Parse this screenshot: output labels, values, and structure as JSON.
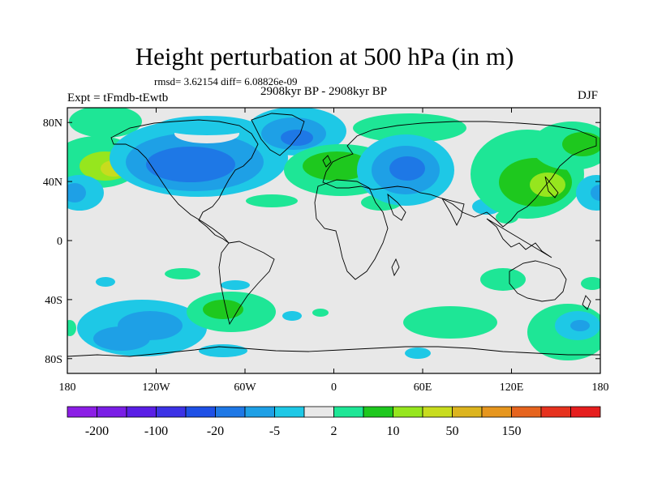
{
  "title": "Height perturbation at 500 hPa (in m)",
  "stats": "rmsd= 3.62154 diff= 6.08826e-09",
  "expt": "Expt = tFmdb-tEwtb",
  "period": "2908kyr BP - 2908kyr BP",
  "season": "DJF",
  "map": {
    "lon_range": [
      -180,
      180
    ],
    "lat_range": [
      -90,
      90
    ],
    "y_ticks": [
      {
        "lat": 80,
        "label": "80N"
      },
      {
        "lat": 40,
        "label": "40N"
      },
      {
        "lat": 0,
        "label": "0"
      },
      {
        "lat": -40,
        "label": "40S"
      },
      {
        "lat": -80,
        "label": "80S"
      }
    ],
    "x_ticks": [
      {
        "lon": -180,
        "label": "180"
      },
      {
        "lon": -120,
        "label": "120W"
      },
      {
        "lon": -60,
        "label": "60W"
      },
      {
        "lon": 0,
        "label": "0"
      },
      {
        "lon": 60,
        "label": "60E"
      },
      {
        "lon": 120,
        "label": "120E"
      },
      {
        "lon": 180,
        "label": "180"
      }
    ],
    "background_color": "#e8e8e8"
  },
  "colorbar": {
    "colors": [
      "#8c1ee6",
      "#7a1ee6",
      "#5a1ee6",
      "#3c32e6",
      "#1e50e6",
      "#1e78e6",
      "#1ea0e6",
      "#1ec8e6",
      "#e8e8e8",
      "#1ee696",
      "#1ec81e",
      "#96e61e",
      "#c8dc1e",
      "#dcb41e",
      "#e6961e",
      "#e6641e",
      "#e6321e",
      "#e61e1e"
    ],
    "labels": [
      {
        "index": 1,
        "label": "-200"
      },
      {
        "index": 3,
        "label": "-100"
      },
      {
        "index": 5,
        "label": "-20"
      },
      {
        "index": 7,
        "label": "-5"
      },
      {
        "index": 9,
        "label": "2"
      },
      {
        "index": 11,
        "label": "10"
      },
      {
        "index": 13,
        "label": "50"
      },
      {
        "index": 15,
        "label": "150"
      }
    ]
  }
}
